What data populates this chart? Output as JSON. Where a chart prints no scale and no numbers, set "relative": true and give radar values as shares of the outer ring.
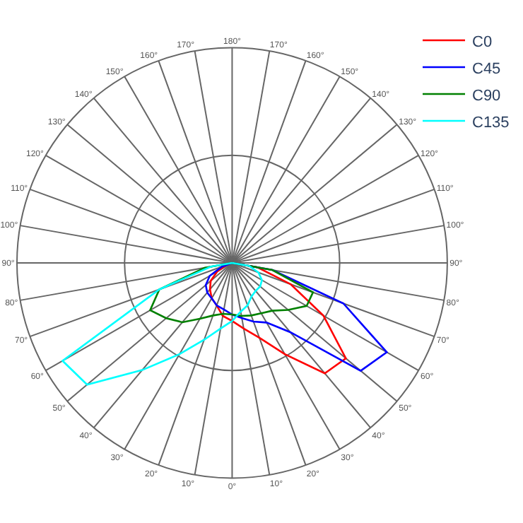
{
  "chart_data": {
    "type": "radar",
    "relative": true,
    "grid": true,
    "legend": "top right",
    "line_style": "solid",
    "marker": "none",
    "categories": [
      "180°",
      "170°",
      "160°",
      "150°",
      "140°",
      "130°",
      "120°",
      "110°",
      "100°",
      "90°",
      "80°",
      "70°",
      "60°",
      "50°",
      "40°",
      "30°",
      "20°",
      "10°",
      "0°",
      "10°",
      "20°",
      "30°",
      "40°",
      "50°",
      "60°",
      "70°",
      "80°",
      "90°",
      "100°",
      "110°",
      "120°",
      "130°",
      "140°",
      "150°",
      "160°",
      "170°"
    ],
    "series": [
      {
        "name": "C0",
        "color": "#ff0000",
        "values": [
          0,
          0,
          0,
          0,
          0,
          0,
          0,
          0,
          0,
          0,
          0.12,
          0.29,
          0.49,
          0.69,
          0.67,
          0.49,
          0.37,
          0.31,
          0.27,
          0.25,
          0.21,
          0.19,
          0.16,
          0.13,
          0.08,
          0.03,
          0,
          0,
          0,
          0,
          0,
          0,
          0,
          0,
          0,
          0
        ]
      },
      {
        "name": "C45",
        "color": "#0000ff",
        "values": [
          0,
          0,
          0,
          0,
          0,
          0,
          0,
          0,
          0,
          0,
          0.19,
          0.55,
          0.83,
          0.78,
          0.42,
          0.32,
          0.29,
          0.26,
          0.24,
          0.22,
          0.21,
          0.19,
          0.18,
          0.16,
          0.12,
          0.05,
          0,
          0,
          0,
          0,
          0,
          0,
          0,
          0,
          0,
          0
        ]
      },
      {
        "name": "C90",
        "color": "#008000",
        "values": [
          0,
          0,
          0,
          0,
          0,
          0,
          0,
          0,
          0,
          0,
          0.19,
          0.4,
          0.4,
          0.34,
          0.29,
          0.27,
          0.26,
          0.25,
          0.24,
          0.24,
          0.26,
          0.3,
          0.36,
          0.4,
          0.44,
          0.36,
          0.13,
          0,
          0,
          0,
          0,
          0,
          0,
          0,
          0,
          0
        ]
      },
      {
        "name": "C135",
        "color": "#00ffff",
        "values": [
          0,
          0,
          0,
          0,
          0,
          0,
          0,
          0,
          0,
          0,
          0.08,
          0.13,
          0.16,
          0.17,
          0.17,
          0.18,
          0.21,
          0.23,
          0.27,
          0.31,
          0.38,
          0.49,
          0.65,
          0.88,
          0.91,
          0.36,
          0.1,
          0,
          0,
          0,
          0,
          0,
          0,
          0,
          0,
          0
        ]
      }
    ]
  }
}
